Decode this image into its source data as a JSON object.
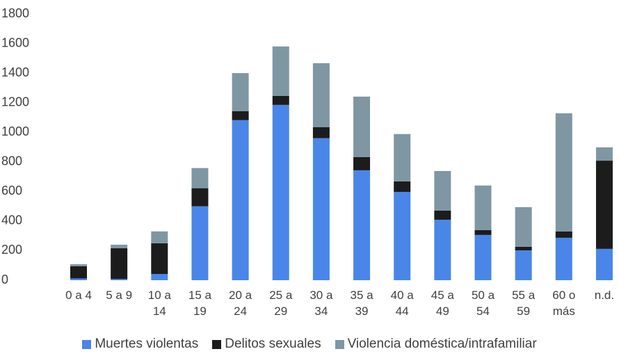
{
  "chart_data": {
    "type": "stacked_bar",
    "categories": [
      "0 a 4",
      "5 a 9",
      "10 a 14",
      "15 a 19",
      "20 a 24",
      "25 a 29",
      "30 a 34",
      "35 a 39",
      "40 a 44",
      "45 a 49",
      "50 a 54",
      "55 a 59",
      "60 o más",
      "n.d."
    ],
    "series": [
      {
        "name": "Muertes violentas",
        "color": "#4a86e8",
        "values": [
          12,
          8,
          42,
          500,
          1082,
          1185,
          960,
          743,
          597,
          409,
          306,
          202,
          287,
          212
        ]
      },
      {
        "name": "Delitos sexuales",
        "color": "#1c1c1c",
        "values": [
          83,
          208,
          208,
          122,
          61,
          61,
          75,
          89,
          71,
          61,
          33,
          24,
          42,
          596
        ]
      },
      {
        "name": "Violencia doméstica/intrafamiliar",
        "color": "#7f97a3",
        "values": [
          13,
          24,
          80,
          136,
          257,
          334,
          432,
          409,
          320,
          268,
          301,
          268,
          799,
          90
        ]
      }
    ],
    "ylim": [
      0,
      1800
    ],
    "yticks": [
      0,
      200,
      400,
      600,
      800,
      1000,
      1200,
      1400,
      1600,
      1800
    ],
    "legend": "bottom"
  }
}
